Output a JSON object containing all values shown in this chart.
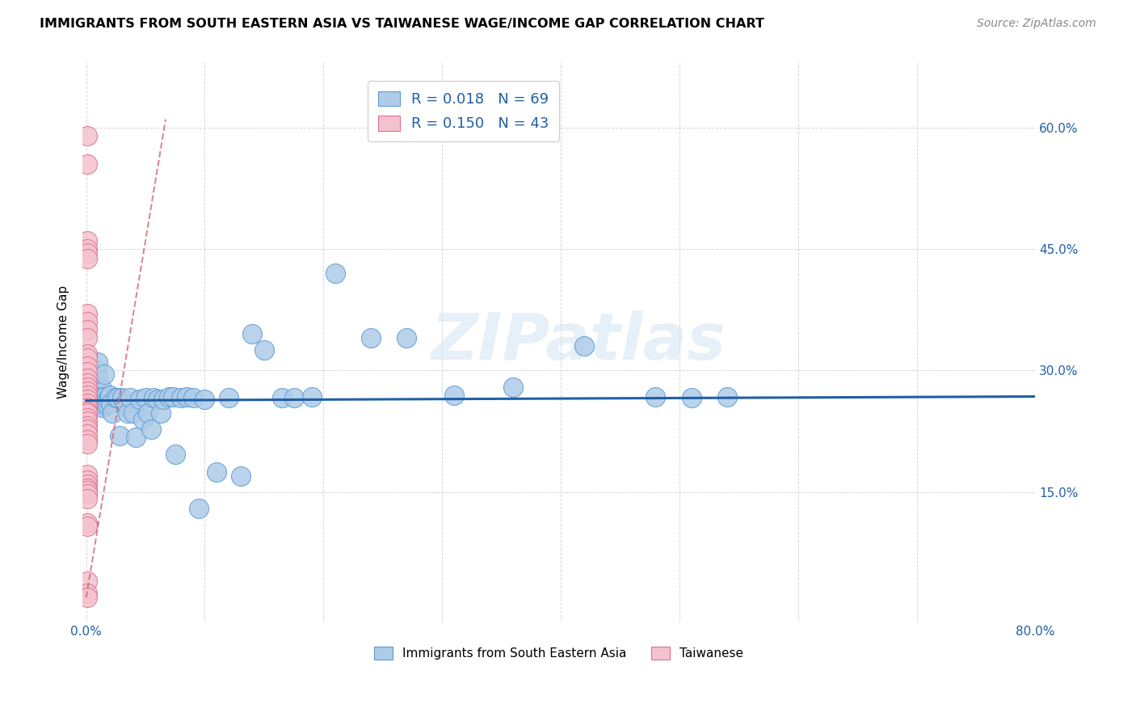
{
  "title": "IMMIGRANTS FROM SOUTH EASTERN ASIA VS TAIWANESE WAGE/INCOME GAP CORRELATION CHART",
  "source": "Source: ZipAtlas.com",
  "ylabel": "Wage/Income Gap",
  "legend_label1": "Immigrants from South Eastern Asia",
  "legend_label2": "Taiwanese",
  "R1": 0.018,
  "N1": 69,
  "R2": 0.15,
  "N2": 43,
  "blue_color": "#aecce8",
  "blue_edge_color": "#5b9bd5",
  "pink_color": "#f4c2ce",
  "pink_edge_color": "#e07090",
  "blue_line_color": "#1f5fa6",
  "pink_line_color": "#d06070",
  "watermark": "ZIPatlas",
  "xlim": [
    0.0,
    0.8
  ],
  "ylim": [
    0.0,
    0.68
  ],
  "xticks": [
    0.0,
    0.1,
    0.2,
    0.3,
    0.4,
    0.5,
    0.6,
    0.7,
    0.8
  ],
  "xticklabels": [
    "0.0%",
    "",
    "",
    "",
    "",
    "",
    "",
    "",
    "80.0%"
  ],
  "yticks": [
    0.15,
    0.3,
    0.45,
    0.6
  ],
  "yticklabels": [
    "15.0%",
    "30.0%",
    "45.0%",
    "60.0%"
  ],
  "blue_x": [
    0.003,
    0.004,
    0.005,
    0.005,
    0.006,
    0.007,
    0.007,
    0.008,
    0.009,
    0.009,
    0.01,
    0.01,
    0.011,
    0.012,
    0.013,
    0.014,
    0.014,
    0.015,
    0.015,
    0.016,
    0.017,
    0.018,
    0.019,
    0.02,
    0.021,
    0.022,
    0.025,
    0.027,
    0.028,
    0.03,
    0.033,
    0.035,
    0.037,
    0.04,
    0.042,
    0.045,
    0.048,
    0.05,
    0.052,
    0.055,
    0.057,
    0.06,
    0.063,
    0.065,
    0.07,
    0.073,
    0.075,
    0.08,
    0.085,
    0.09,
    0.095,
    0.1,
    0.11,
    0.12,
    0.13,
    0.14,
    0.15,
    0.165,
    0.175,
    0.19,
    0.21,
    0.24,
    0.27,
    0.31,
    0.36,
    0.42,
    0.48,
    0.51,
    0.54
  ],
  "blue_y": [
    0.285,
    0.275,
    0.275,
    0.295,
    0.275,
    0.27,
    0.26,
    0.285,
    0.27,
    0.3,
    0.29,
    0.31,
    0.275,
    0.265,
    0.278,
    0.268,
    0.255,
    0.295,
    0.268,
    0.258,
    0.26,
    0.265,
    0.268,
    0.27,
    0.26,
    0.248,
    0.267,
    0.267,
    0.22,
    0.267,
    0.26,
    0.248,
    0.267,
    0.248,
    0.218,
    0.265,
    0.24,
    0.267,
    0.248,
    0.228,
    0.267,
    0.265,
    0.248,
    0.265,
    0.268,
    0.268,
    0.197,
    0.267,
    0.268,
    0.267,
    0.13,
    0.265,
    0.175,
    0.267,
    0.17,
    0.345,
    0.325,
    0.267,
    0.267,
    0.268,
    0.42,
    0.34,
    0.34,
    0.27,
    0.28,
    0.33,
    0.268,
    0.267,
    0.268
  ],
  "pink_x": [
    0.001,
    0.001,
    0.001,
    0.001,
    0.001,
    0.001,
    0.001,
    0.001,
    0.001,
    0.001,
    0.001,
    0.001,
    0.001,
    0.001,
    0.001,
    0.001,
    0.001,
    0.001,
    0.001,
    0.001,
    0.001,
    0.001,
    0.001,
    0.001,
    0.001,
    0.001,
    0.001,
    0.001,
    0.001,
    0.001,
    0.001,
    0.001,
    0.001,
    0.001,
    0.001,
    0.001,
    0.001,
    0.001,
    0.001,
    0.001,
    0.001,
    0.001,
    0.001
  ],
  "pink_y": [
    0.59,
    0.555,
    0.46,
    0.45,
    0.445,
    0.438,
    0.37,
    0.36,
    0.35,
    0.34,
    0.32,
    0.315,
    0.305,
    0.298,
    0.29,
    0.285,
    0.28,
    0.275,
    0.27,
    0.265,
    0.26,
    0.255,
    0.25,
    0.248,
    0.242,
    0.238,
    0.232,
    0.228,
    0.222,
    0.215,
    0.21,
    0.172,
    0.165,
    0.16,
    0.155,
    0.152,
    0.148,
    0.142,
    0.112,
    0.108,
    0.04,
    0.025,
    0.02
  ],
  "pink_trendline_x0": 0.0,
  "pink_trendline_x1": 0.067,
  "pink_trendline_y0": 0.02,
  "pink_trendline_y1": 0.61,
  "blue_trendline_x0": 0.0,
  "blue_trendline_x1": 0.8,
  "blue_trendline_y0": 0.263,
  "blue_trendline_y1": 0.268
}
